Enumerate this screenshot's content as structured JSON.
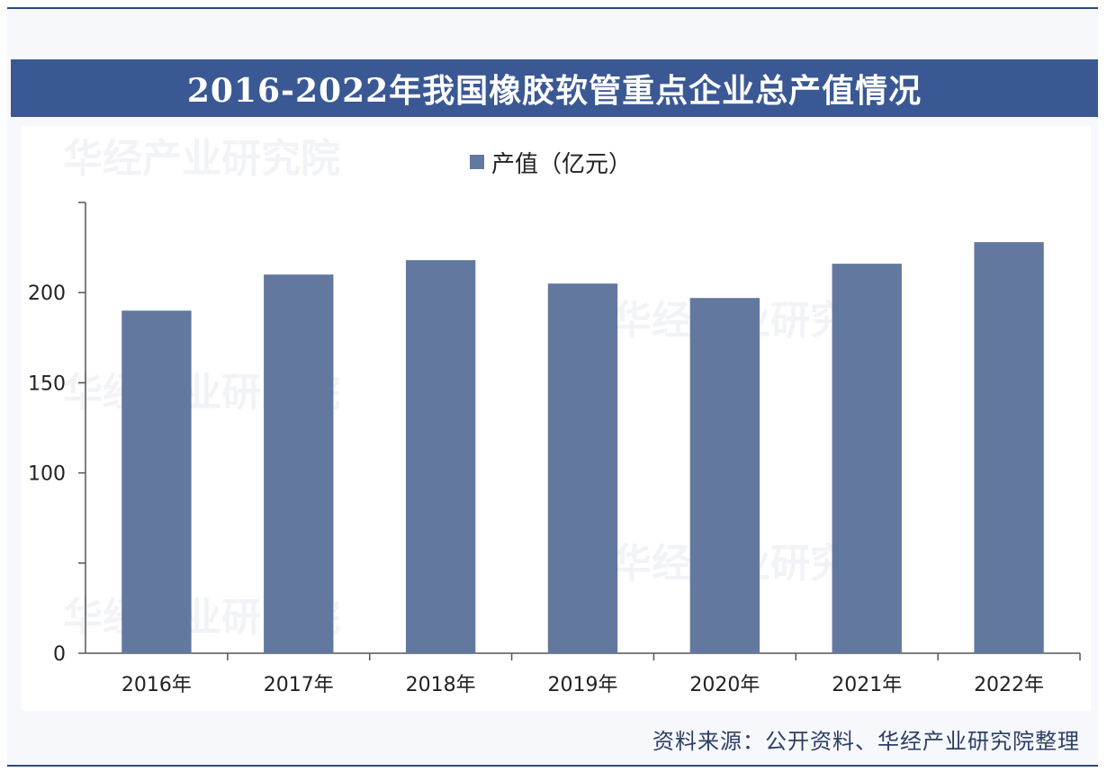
{
  "header": {
    "title": "2016-2022年我国橡胶软管重点企业总产值情况"
  },
  "footer": {
    "source": "资料来源：公开资料、华经产业研究院整理"
  },
  "legend": {
    "label": "产值（亿元）"
  },
  "watermark": {
    "text": "华经产业研究院",
    "url": "www.huaon.com"
  },
  "colors": {
    "bar": "#63789f",
    "title_bg": "#3a5894",
    "axis": "#555555"
  },
  "chart_data": {
    "type": "bar",
    "categories": [
      "2016年",
      "2017年",
      "2018年",
      "2019年",
      "2020年",
      "2021年",
      "2022年"
    ],
    "series": [
      {
        "name": "产值（亿元）",
        "values": [
          190,
          210,
          218,
          205,
          197,
          216,
          228
        ]
      }
    ],
    "ylim": [
      0,
      250
    ],
    "yticks": [
      0,
      50,
      100,
      150,
      200,
      250
    ],
    "ytick_labels": [
      "0",
      "",
      "100",
      "150",
      "200",
      ""
    ],
    "grid": false,
    "legend_position": "top-center"
  }
}
